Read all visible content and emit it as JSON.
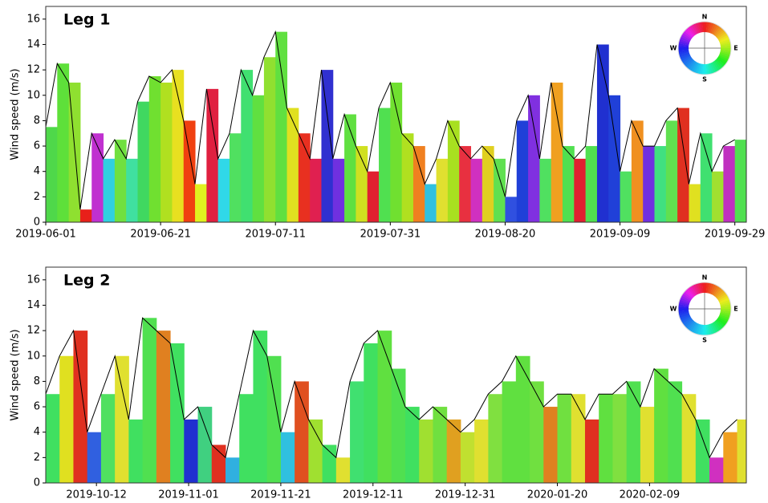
{
  "chart_data": [
    {
      "type": "area",
      "annotation": "Leg 1",
      "y_label": "Wind speed (m/s)",
      "compass": [
        "N",
        "E",
        "S",
        "W"
      ],
      "xlim": [
        "2019-06-01",
        "2019-10-01"
      ],
      "xticks": [
        "2019-06-01",
        "2019-06-21",
        "2019-07-11",
        "2019-07-31",
        "2019-08-20",
        "2019-09-09",
        "2019-09-29"
      ],
      "ylim": [
        0,
        17
      ],
      "yticks": [
        0,
        2,
        4,
        6,
        8,
        10,
        12,
        14,
        16
      ],
      "line_color": "#000000",
      "x": [
        "2019-06-01",
        "2019-06-03",
        "2019-06-05",
        "2019-06-07",
        "2019-06-09",
        "2019-06-11",
        "2019-06-13",
        "2019-06-15",
        "2019-06-17",
        "2019-06-19",
        "2019-06-21",
        "2019-06-23",
        "2019-06-25",
        "2019-06-27",
        "2019-06-29",
        "2019-07-01",
        "2019-07-03",
        "2019-07-05",
        "2019-07-07",
        "2019-07-09",
        "2019-07-11",
        "2019-07-13",
        "2019-07-15",
        "2019-07-17",
        "2019-07-19",
        "2019-07-21",
        "2019-07-23",
        "2019-07-25",
        "2019-07-27",
        "2019-07-29",
        "2019-07-31",
        "2019-08-02",
        "2019-08-04",
        "2019-08-06",
        "2019-08-08",
        "2019-08-10",
        "2019-08-12",
        "2019-08-14",
        "2019-08-16",
        "2019-08-18",
        "2019-08-20",
        "2019-08-22",
        "2019-08-24",
        "2019-08-26",
        "2019-08-28",
        "2019-08-30",
        "2019-09-01",
        "2019-09-03",
        "2019-09-05",
        "2019-09-07",
        "2019-09-09",
        "2019-09-11",
        "2019-09-13",
        "2019-09-15",
        "2019-09-17",
        "2019-09-19",
        "2019-09-21",
        "2019-09-23",
        "2019-09-25",
        "2019-09-27",
        "2019-09-29"
      ],
      "values": [
        7.5,
        12.5,
        11,
        1,
        7,
        5,
        6.5,
        5,
        9.5,
        11.5,
        11,
        12,
        8,
        3,
        10.5,
        5,
        7,
        12,
        10,
        13,
        15,
        9,
        7,
        5,
        12,
        5,
        8.5,
        6,
        4,
        9,
        11,
        7,
        6,
        3,
        5,
        8,
        6,
        5,
        6,
        5,
        2,
        8,
        10,
        5,
        11,
        6,
        5,
        6,
        14,
        10,
        4,
        8,
        6,
        6,
        8,
        9,
        3,
        7,
        4,
        6,
        6.5
      ],
      "colors": [
        "#4fd84a",
        "#5ee03a",
        "#8fe030",
        "#e8201a",
        "#c030d0",
        "#30d0e0",
        "#70e040",
        "#40e0a0",
        "#40d860",
        "#70e030",
        "#b0e020",
        "#e8e020",
        "#f04010",
        "#e0f020",
        "#e02040",
        "#30d8e8",
        "#50e060",
        "#40e070",
        "#60e040",
        "#90e030",
        "#60e040",
        "#e0e020",
        "#e83020",
        "#e02050",
        "#3030d0",
        "#7030e0",
        "#60e040",
        "#d0e020",
        "#e02030",
        "#50e050",
        "#70e030",
        "#b0e020",
        "#f08020",
        "#30c0e0",
        "#e0e030",
        "#a8e020",
        "#e83040",
        "#d030c0",
        "#e0d020",
        "#60e050",
        "#3050e0",
        "#2040d8",
        "#8030e0",
        "#50e060",
        "#f0a020",
        "#50e050",
        "#e02030",
        "#50e050",
        "#2030d0",
        "#2040d8",
        "#50e060",
        "#f09020",
        "#7030e0",
        "#40e080",
        "#60e050",
        "#e03020",
        "#e0e020",
        "#40e070",
        "#a0e030",
        "#c030c0",
        "#50e050"
      ]
    },
    {
      "type": "area",
      "annotation": "Leg 2",
      "y_label": "Wind speed (m/s)",
      "compass": [
        "N",
        "E",
        "S",
        "W"
      ],
      "xlim": [
        "2019-10-01",
        "2020-03-01"
      ],
      "xticks": [
        "2019-10-12",
        "2019-11-01",
        "2019-11-21",
        "2019-12-11",
        "2019-12-31",
        "2020-01-20",
        "2020-02-09"
      ],
      "ylim": [
        0,
        17
      ],
      "yticks": [
        0,
        2,
        4,
        6,
        8,
        10,
        12,
        14,
        16
      ],
      "line_color": "#000000",
      "x": [
        "2019-10-01",
        "2019-10-04",
        "2019-10-07",
        "2019-10-10",
        "2019-10-13",
        "2019-10-16",
        "2019-10-19",
        "2019-10-22",
        "2019-10-25",
        "2019-10-28",
        "2019-10-31",
        "2019-11-03",
        "2019-11-06",
        "2019-11-09",
        "2019-11-12",
        "2019-11-15",
        "2019-11-18",
        "2019-11-21",
        "2019-11-24",
        "2019-11-27",
        "2019-11-30",
        "2019-12-03",
        "2019-12-06",
        "2019-12-09",
        "2019-12-12",
        "2019-12-15",
        "2019-12-18",
        "2019-12-21",
        "2019-12-24",
        "2019-12-27",
        "2019-12-30",
        "2020-01-02",
        "2020-01-05",
        "2020-01-08",
        "2020-01-11",
        "2020-01-14",
        "2020-01-17",
        "2020-01-20",
        "2020-01-23",
        "2020-01-26",
        "2020-01-29",
        "2020-02-01",
        "2020-02-04",
        "2020-02-07",
        "2020-02-10",
        "2020-02-13",
        "2020-02-16",
        "2020-02-19",
        "2020-02-22",
        "2020-02-25",
        "2020-02-28"
      ],
      "values": [
        7,
        10,
        12,
        4,
        7,
        10,
        5,
        13,
        12,
        11,
        5,
        6,
        3,
        2,
        7,
        12,
        10,
        4,
        8,
        5,
        3,
        2,
        8,
        11,
        12,
        9,
        6,
        5,
        6,
        5,
        4,
        5,
        7,
        8,
        10,
        8,
        6,
        7,
        7,
        5,
        7,
        7,
        8,
        6,
        9,
        8,
        7,
        5,
        2,
        4,
        5
      ],
      "colors": [
        "#40e060",
        "#e0e020",
        "#e03020",
        "#3060e0",
        "#50e060",
        "#e0e030",
        "#40e060",
        "#50e050",
        "#e08020",
        "#40e060",
        "#2030d0",
        "#40d080",
        "#e03020",
        "#30b0e0",
        "#40e060",
        "#40e060",
        "#50e050",
        "#30c0e0",
        "#e05020",
        "#a0e030",
        "#40e060",
        "#e0e030",
        "#40e070",
        "#40e060",
        "#60e040",
        "#50e050",
        "#40e060",
        "#a0e030",
        "#70e040",
        "#e0a020",
        "#c0e030",
        "#e0e030",
        "#80e040",
        "#60e040",
        "#60e040",
        "#70e040",
        "#e08020",
        "#70e040",
        "#e0e030",
        "#e03020",
        "#60e040",
        "#80e040",
        "#50e050",
        "#e0e030",
        "#60e040",
        "#50e050",
        "#e0e030",
        "#40e060",
        "#d030c0",
        "#f0a020",
        "#e0e030"
      ]
    }
  ]
}
